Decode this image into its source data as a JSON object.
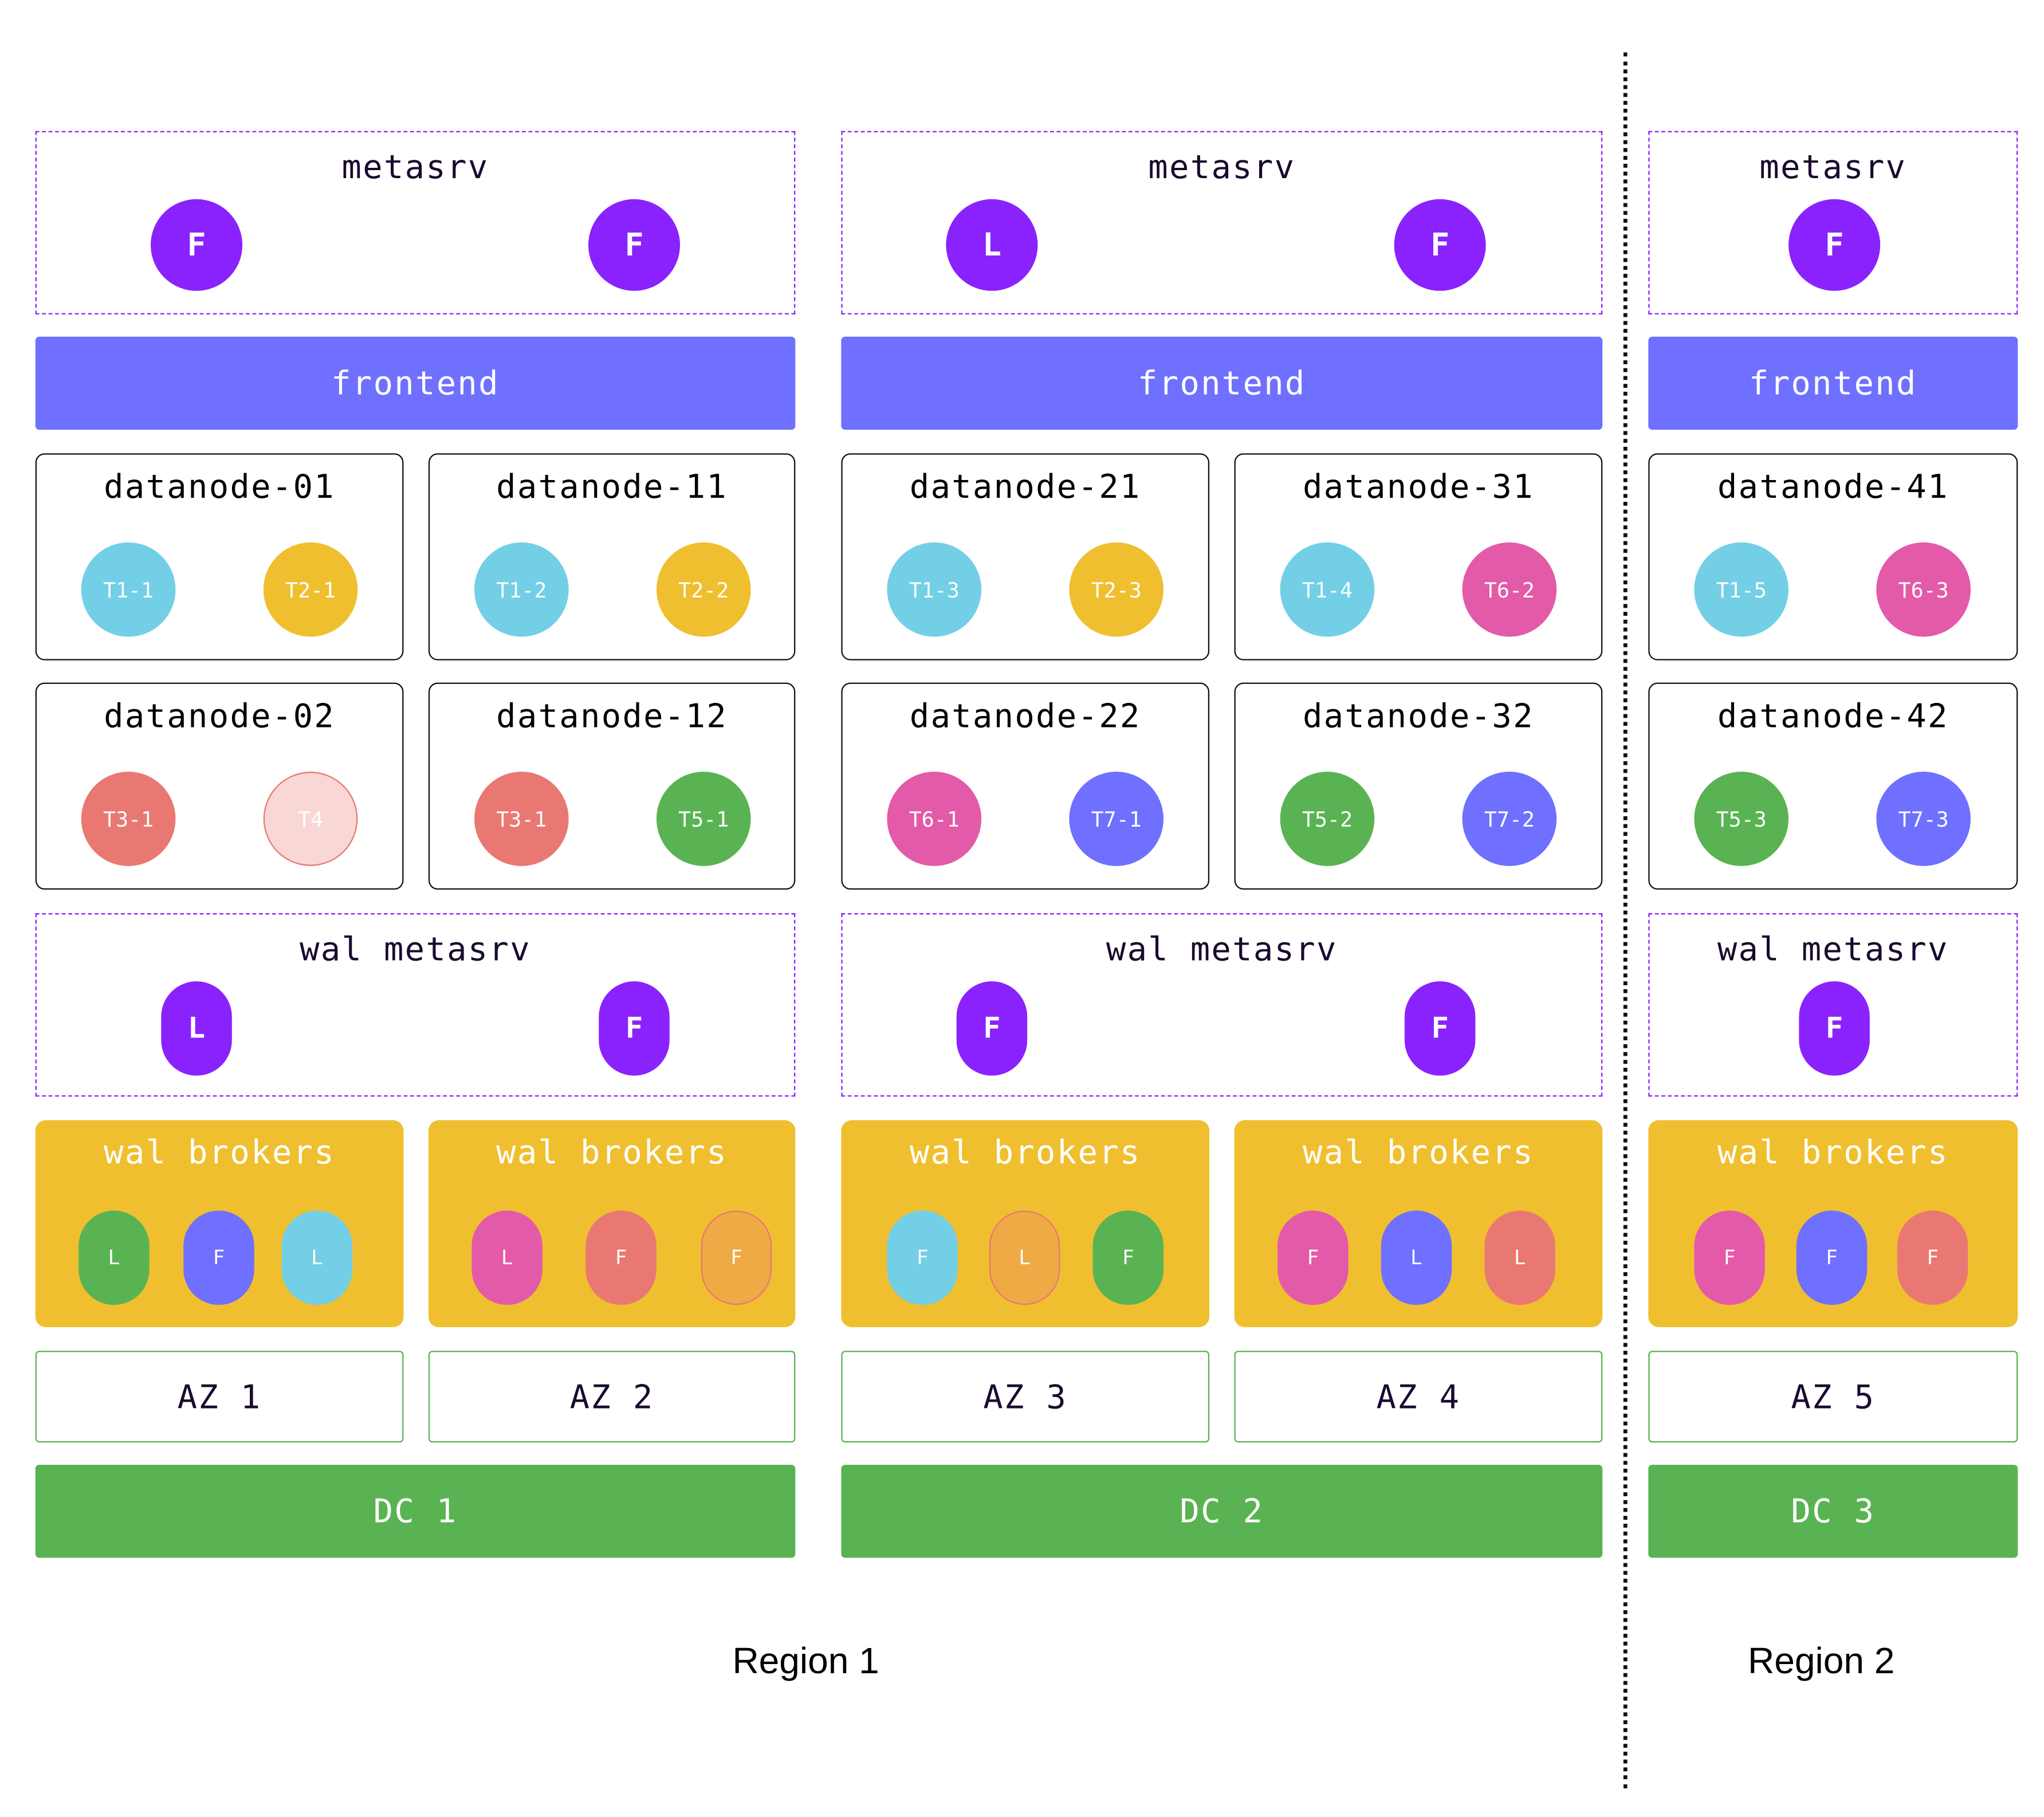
{
  "colors": {
    "purple": "#8a22fe",
    "frontend": "#6f70ff",
    "cyan": "#72cfe6",
    "yellow": "#f0bf2f",
    "pink": "#e35aa8",
    "red": "#e97872",
    "green": "#5ab352",
    "blue": "#6f70ff",
    "lightpink": "#f8d7d5",
    "orange": "#eeaa44"
  },
  "labels": {
    "metasrv": "metasrv",
    "frontend": "frontend",
    "wal_metasrv": "wal metasrv",
    "wal_brokers": "wal brokers"
  },
  "columns": [
    {
      "metasrv": [
        "F",
        "F"
      ],
      "wal_metasrv": [
        "L",
        "F"
      ],
      "dc": "DC 1",
      "subs": [
        {
          "datanodes": [
            {
              "name": "datanode-01",
              "tablets": [
                {
                  "label": "T1-1",
                  "color": "cyan"
                },
                {
                  "label": "T2-1",
                  "color": "yellow"
                }
              ]
            },
            {
              "name": "datanode-02",
              "tablets": [
                {
                  "label": "T3-1",
                  "color": "red"
                },
                {
                  "label": "T4",
                  "color": "lightpink",
                  "outline": "red"
                }
              ]
            }
          ],
          "brokers": [
            {
              "label": "L",
              "color": "green"
            },
            {
              "label": "F",
              "color": "blue"
            },
            {
              "label": "L",
              "color": "cyan"
            }
          ],
          "az": "AZ 1"
        },
        {
          "datanodes": [
            {
              "name": "datanode-11",
              "tablets": [
                {
                  "label": "T1-2",
                  "color": "cyan"
                },
                {
                  "label": "T2-2",
                  "color": "yellow"
                }
              ]
            },
            {
              "name": "datanode-12",
              "tablets": [
                {
                  "label": "T3-1",
                  "color": "red"
                },
                {
                  "label": "T5-1",
                  "color": "green"
                }
              ]
            }
          ],
          "brokers": [
            {
              "label": "L",
              "color": "pink"
            },
            {
              "label": "F",
              "color": "red"
            },
            {
              "label": "F",
              "color": "orange",
              "outline": "red"
            }
          ],
          "az": "AZ 2"
        }
      ]
    },
    {
      "metasrv": [
        "L",
        "F"
      ],
      "wal_metasrv": [
        "F",
        "F"
      ],
      "dc": "DC 2",
      "subs": [
        {
          "datanodes": [
            {
              "name": "datanode-21",
              "tablets": [
                {
                  "label": "T1-3",
                  "color": "cyan"
                },
                {
                  "label": "T2-3",
                  "color": "yellow"
                }
              ]
            },
            {
              "name": "datanode-22",
              "tablets": [
                {
                  "label": "T6-1",
                  "color": "pink"
                },
                {
                  "label": "T7-1",
                  "color": "blue"
                }
              ]
            }
          ],
          "brokers": [
            {
              "label": "F",
              "color": "cyan"
            },
            {
              "label": "L",
              "color": "orange",
              "outline": "red"
            },
            {
              "label": "F",
              "color": "green"
            }
          ],
          "az": "AZ 3"
        },
        {
          "datanodes": [
            {
              "name": "datanode-31",
              "tablets": [
                {
                  "label": "T1-4",
                  "color": "cyan"
                },
                {
                  "label": "T6-2",
                  "color": "pink"
                }
              ]
            },
            {
              "name": "datanode-32",
              "tablets": [
                {
                  "label": "T5-2",
                  "color": "green"
                },
                {
                  "label": "T7-2",
                  "color": "blue"
                }
              ]
            }
          ],
          "brokers": [
            {
              "label": "F",
              "color": "pink"
            },
            {
              "label": "L",
              "color": "blue"
            },
            {
              "label": "L",
              "color": "red"
            }
          ],
          "az": "AZ 4"
        }
      ]
    },
    {
      "metasrv": [
        "F"
      ],
      "wal_metasrv": [
        "F"
      ],
      "dc": "DC 3",
      "subs": [
        {
          "datanodes": [
            {
              "name": "datanode-41",
              "tablets": [
                {
                  "label": "T1-5",
                  "color": "cyan"
                },
                {
                  "label": "T6-3",
                  "color": "pink"
                }
              ]
            },
            {
              "name": "datanode-42",
              "tablets": [
                {
                  "label": "T5-3",
                  "color": "green"
                },
                {
                  "label": "T7-3",
                  "color": "blue"
                }
              ]
            }
          ],
          "brokers": [
            {
              "label": "F",
              "color": "pink"
            },
            {
              "label": "F",
              "color": "blue"
            },
            {
              "label": "F",
              "color": "red"
            }
          ],
          "az": "AZ 5"
        }
      ]
    }
  ],
  "regions": [
    {
      "label": "Region 1"
    },
    {
      "label": "Region 2"
    }
  ]
}
